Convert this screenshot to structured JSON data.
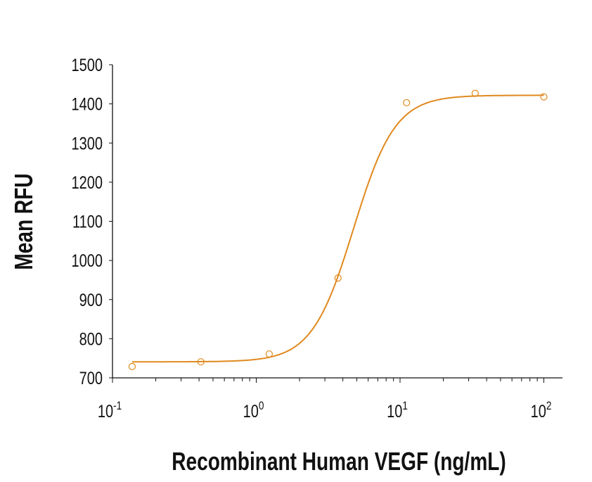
{
  "chart_data": {
    "type": "scatter",
    "title": "",
    "xlabel": "Recombinant Human VEGF (ng/mL)",
    "ylabel": "Mean RFU",
    "xscale": "log",
    "xlim": [
      0.1,
      130
    ],
    "ylim": [
      700,
      1500
    ],
    "x_ticks": [
      {
        "base": "10",
        "exp": "-1"
      },
      {
        "base": "10",
        "exp": "0"
      },
      {
        "base": "10",
        "exp": "1"
      },
      {
        "base": "10",
        "exp": "2"
      }
    ],
    "y_ticks": [
      "700",
      "800",
      "900",
      "1000",
      "1100",
      "1200",
      "1300",
      "1400",
      "1500"
    ],
    "grid": false,
    "color": "#E0891E",
    "points": {
      "x": [
        0.137,
        0.412,
        1.23,
        3.7,
        11.1,
        33.3,
        100
      ],
      "y": [
        729,
        741,
        761,
        955,
        1403,
        1427,
        1418
      ]
    },
    "fit": {
      "model": "4PL",
      "bottom": 741,
      "top": 1422,
      "ec50": 4.75,
      "hill": 3.0
    }
  }
}
